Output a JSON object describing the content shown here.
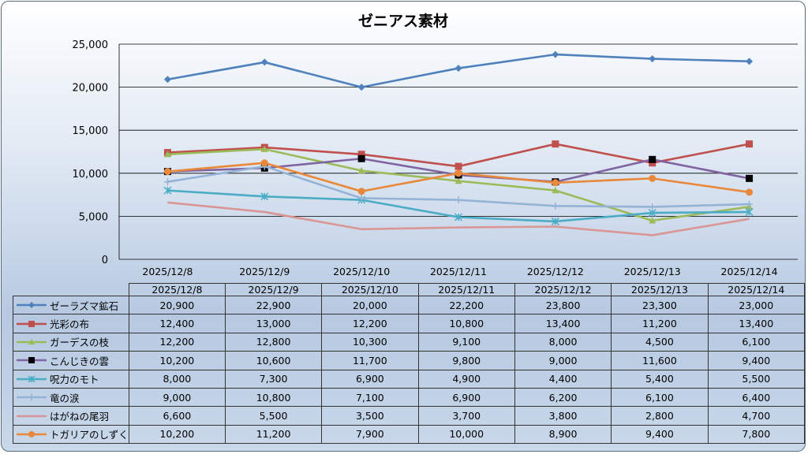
{
  "chart_data": {
    "type": "line",
    "title": "ゼニアス素材",
    "xlabel": "",
    "ylabel": "",
    "ylim": [
      0,
      25000
    ],
    "yticks": [
      "0",
      "5,000",
      "10,000",
      "15,000",
      "20,000",
      "25,000"
    ],
    "ytick_values": [
      0,
      5000,
      10000,
      15000,
      20000,
      25000
    ],
    "grid": true,
    "legend": "data-table-bottom",
    "categories": [
      "2025/12/8",
      "2025/12/9",
      "2025/12/10",
      "2025/12/11",
      "2025/12/12",
      "2025/12/13",
      "2025/12/14"
    ],
    "series": [
      {
        "name": "ゼーラズマ鉱石",
        "color": "#4f81bd",
        "marker": "diamond",
        "marker_color": "#4f81bd",
        "values": [
          20900,
          22900,
          20000,
          22200,
          23800,
          23300,
          23000
        ],
        "labels": [
          "20,900",
          "22,900",
          "20,000",
          "22,200",
          "23,800",
          "23,300",
          "23,000"
        ]
      },
      {
        "name": "光彩の布",
        "color": "#c0504d",
        "marker": "square",
        "marker_color": "#c0504d",
        "values": [
          12400,
          13000,
          12200,
          10800,
          13400,
          11200,
          13400
        ],
        "labels": [
          "12,400",
          "13,000",
          "12,200",
          "10,800",
          "13,400",
          "11,200",
          "13,400"
        ]
      },
      {
        "name": "ガーデスの枝",
        "color": "#9bbb59",
        "marker": "triangle",
        "marker_color": "#9bbb59",
        "values": [
          12200,
          12800,
          10300,
          9100,
          8000,
          4500,
          6100
        ],
        "labels": [
          "12,200",
          "12,800",
          "10,300",
          "9,100",
          "8,000",
          "4,500",
          "6,100"
        ]
      },
      {
        "name": "こんじきの雲",
        "color": "#8064a2",
        "marker": "square",
        "marker_color": "#000000",
        "values": [
          10200,
          10600,
          11700,
          9800,
          9000,
          11600,
          9400
        ],
        "labels": [
          "10,200",
          "10,600",
          "11,700",
          "9,800",
          "9,000",
          "11,600",
          "9,400"
        ]
      },
      {
        "name": "呪力のモト",
        "color": "#4bacc6",
        "marker": "asterisk",
        "marker_color": "#4bacc6",
        "values": [
          8000,
          7300,
          6900,
          4900,
          4400,
          5400,
          5500
        ],
        "labels": [
          "8,000",
          "7,300",
          "6,900",
          "4,900",
          "4,400",
          "5,400",
          "5,500"
        ]
      },
      {
        "name": "竜の涙",
        "color": "#95b3d7",
        "marker": "plus",
        "marker_color": "#95b3d7",
        "values": [
          9000,
          10800,
          7100,
          6900,
          6200,
          6100,
          6400
        ],
        "labels": [
          "9,000",
          "10,800",
          "7,100",
          "6,900",
          "6,200",
          "6,100",
          "6,400"
        ]
      },
      {
        "name": "はがねの尾羽",
        "color": "#d99694",
        "marker": "none",
        "marker_color": "#d99694",
        "values": [
          6600,
          5500,
          3500,
          3700,
          3800,
          2800,
          4700
        ],
        "labels": [
          "6,600",
          "5,500",
          "3,500",
          "3,700",
          "3,800",
          "2,800",
          "4,700"
        ]
      },
      {
        "name": "トガリアのしずく",
        "color": "#e9883a",
        "marker": "circle",
        "marker_color": "#e9883a",
        "values": [
          10200,
          11200,
          7900,
          10000,
          8900,
          9400,
          7800
        ],
        "labels": [
          "10,200",
          "11,200",
          "7,900",
          "10,000",
          "8,900",
          "9,400",
          "7,800"
        ]
      }
    ]
  }
}
